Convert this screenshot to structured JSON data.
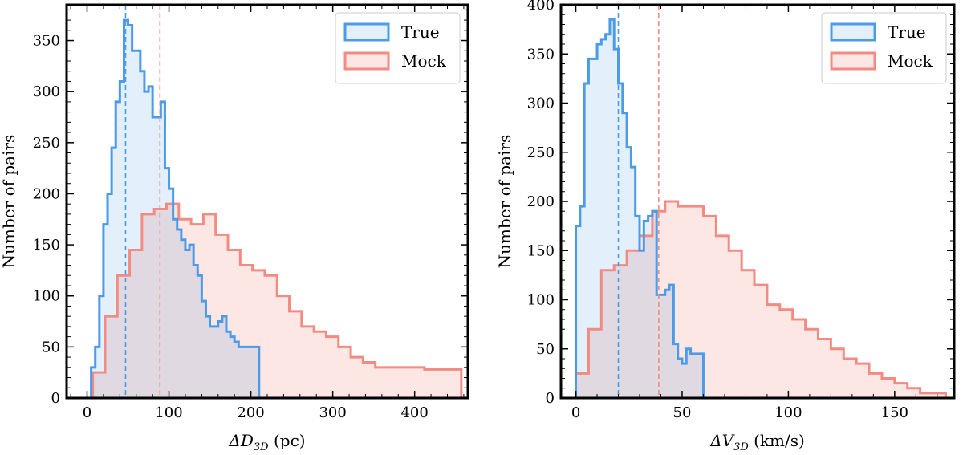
{
  "colors": {
    "true_line": "#4c9be8",
    "true_fill": "#e3f0fc",
    "mock_line": "#f28b82",
    "mock_fill": "#fde7e5",
    "overlap_fill": "#e2dff0",
    "axis": "#000000"
  },
  "chart_data": [
    {
      "type": "histogram",
      "title": "",
      "xlabel": "ΔD",
      "xlabel_sub": "3D",
      "xlabel_unit": "(pc)",
      "ylabel": "Number of pairs",
      "xlim": [
        -25,
        465
      ],
      "ylim": [
        0,
        385
      ],
      "xticks": [
        0,
        100,
        200,
        300,
        400
      ],
      "yticks": [
        0,
        50,
        100,
        150,
        200,
        250,
        300,
        350
      ],
      "legend": {
        "position": "top-right",
        "entries": [
          "True",
          "Mock"
        ]
      },
      "series": [
        {
          "name": "True",
          "bin_width": 5,
          "bins_start": 5,
          "values": [
            30,
            50,
            100,
            170,
            200,
            245,
            290,
            310,
            370,
            365,
            340,
            340,
            320,
            300,
            305,
            275,
            275,
            290,
            225,
            205,
            175,
            165,
            155,
            145,
            150,
            130,
            120,
            95,
            80,
            70,
            70,
            75,
            80,
            65,
            60,
            55,
            50,
            50,
            50,
            50,
            50
          ],
          "median": 47
        },
        {
          "name": "Mock",
          "bin_width": 15,
          "bins_start": 7,
          "values": [
            25,
            80,
            120,
            145,
            180,
            185,
            190,
            175,
            170,
            180,
            160,
            145,
            130,
            125,
            120,
            100,
            85,
            70,
            65,
            60,
            50,
            40,
            35,
            30,
            30,
            30,
            30,
            28,
            28,
            28
          ],
          "median": 89
        }
      ]
    },
    {
      "type": "histogram",
      "title": "",
      "xlabel": "ΔV",
      "xlabel_sub": "3D",
      "xlabel_unit": "(km/s)",
      "ylabel": "Number of pairs",
      "xlim": [
        -7,
        178
      ],
      "ylim": [
        0,
        400
      ],
      "xticks": [
        0,
        50,
        100,
        150
      ],
      "yticks": [
        0,
        50,
        100,
        150,
        200,
        250,
        300,
        350,
        400
      ],
      "legend": {
        "position": "top-right",
        "entries": [
          "True",
          "Mock"
        ]
      },
      "series": [
        {
          "name": "True",
          "bin_width": 2,
          "bins_start": 0,
          "values": [
            175,
            195,
            320,
            345,
            345,
            360,
            365,
            370,
            385,
            355,
            320,
            290,
            255,
            235,
            185,
            150,
            180,
            185,
            190,
            105,
            105,
            110,
            115,
            55,
            40,
            35,
            50,
            45,
            45,
            45
          ],
          "median": 20
        },
        {
          "name": "Mock",
          "bin_width": 6,
          "bins_start": 0,
          "values": [
            25,
            70,
            130,
            135,
            150,
            165,
            190,
            200,
            195,
            195,
            185,
            165,
            150,
            130,
            115,
            95,
            90,
            80,
            70,
            60,
            50,
            40,
            35,
            25,
            20,
            15,
            10,
            5,
            5
          ],
          "median": 39
        }
      ]
    }
  ]
}
